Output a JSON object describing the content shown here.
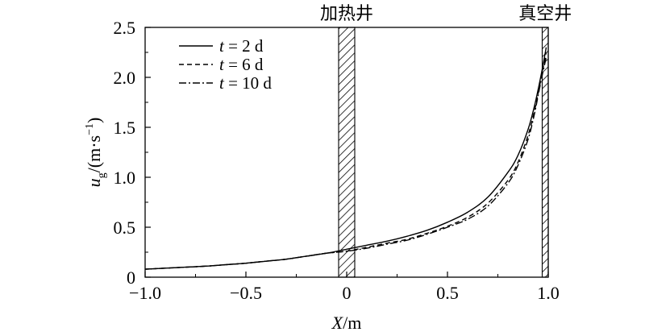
{
  "chart_data": {
    "type": "line",
    "xlabel": {
      "var": "X",
      "unit": "/m"
    },
    "ylabel": {
      "var": "u",
      "sub": "g",
      "unit": "/(m·s",
      "sup": "−1",
      "close": ")"
    },
    "xlim": [
      -1.0,
      1.0
    ],
    "ylim": [
      0,
      2.5
    ],
    "xticks": [
      -1.0,
      -0.5,
      0,
      0.5,
      1.0
    ],
    "xtick_labels": [
      "−1.0",
      "−0.5",
      "0",
      "0.5",
      "1.0"
    ],
    "yticks": [
      0,
      0.5,
      1.0,
      1.5,
      2.0,
      2.5
    ],
    "ytick_labels": [
      "0",
      "0.5",
      "1.0",
      "1.5",
      "2.0",
      "2.5"
    ],
    "grid": false,
    "legend_position": "top-left",
    "regions": [
      {
        "label": "加热井",
        "x_range": [
          -0.04,
          0.04
        ]
      },
      {
        "label": "真空井",
        "x_range": [
          0.97,
          1.0
        ]
      }
    ],
    "series": [
      {
        "name": "t = 2 d",
        "legend_var": "t",
        "legend_val": " = 2 d",
        "style": "solid",
        "x": [
          -1.0,
          -0.9,
          -0.8,
          -0.7,
          -0.6,
          -0.5,
          -0.4,
          -0.3,
          -0.2,
          -0.1,
          0.0,
          0.1,
          0.2,
          0.3,
          0.4,
          0.5,
          0.6,
          0.7,
          0.8,
          0.85,
          0.9,
          0.93,
          0.95,
          0.97,
          0.99
        ],
        "values": [
          0.08,
          0.09,
          0.1,
          0.11,
          0.125,
          0.14,
          0.16,
          0.18,
          0.21,
          0.24,
          0.28,
          0.32,
          0.36,
          0.41,
          0.47,
          0.55,
          0.65,
          0.8,
          1.05,
          1.22,
          1.48,
          1.7,
          1.88,
          2.08,
          2.3
        ]
      },
      {
        "name": "t = 6 d",
        "legend_var": "t",
        "legend_val": " = 6 d",
        "style": "dashed",
        "x": [
          -1.0,
          -0.9,
          -0.8,
          -0.7,
          -0.6,
          -0.5,
          -0.4,
          -0.3,
          -0.2,
          -0.1,
          0.0,
          0.1,
          0.2,
          0.3,
          0.4,
          0.5,
          0.6,
          0.7,
          0.8,
          0.85,
          0.9,
          0.93,
          0.95,
          0.97,
          0.99
        ],
        "values": [
          0.08,
          0.09,
          0.1,
          0.11,
          0.125,
          0.14,
          0.16,
          0.18,
          0.21,
          0.24,
          0.26,
          0.3,
          0.34,
          0.38,
          0.44,
          0.51,
          0.6,
          0.74,
          0.97,
          1.15,
          1.42,
          1.65,
          1.84,
          2.05,
          2.25
        ]
      },
      {
        "name": "t = 10 d",
        "legend_var": "t",
        "legend_val": " = 10 d",
        "style": "dashdot",
        "x": [
          -1.0,
          -0.9,
          -0.8,
          -0.7,
          -0.6,
          -0.5,
          -0.4,
          -0.3,
          -0.2,
          -0.1,
          0.0,
          0.1,
          0.2,
          0.3,
          0.4,
          0.5,
          0.6,
          0.7,
          0.8,
          0.85,
          0.9,
          0.93,
          0.95,
          0.97,
          0.99
        ],
        "values": [
          0.08,
          0.09,
          0.1,
          0.11,
          0.125,
          0.14,
          0.16,
          0.18,
          0.21,
          0.24,
          0.26,
          0.29,
          0.33,
          0.37,
          0.43,
          0.5,
          0.58,
          0.71,
          0.94,
          1.12,
          1.38,
          1.62,
          1.82,
          2.02,
          2.2
        ]
      }
    ]
  }
}
